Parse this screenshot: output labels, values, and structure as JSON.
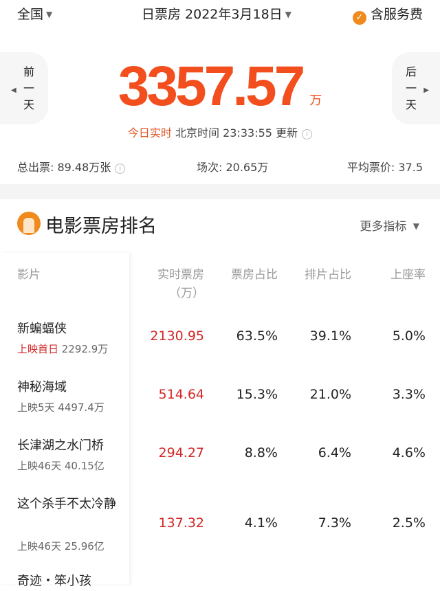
{
  "header": {
    "region": "全国",
    "date_label": "日票房 2022年3月18日",
    "service_fee": "含服务费"
  },
  "summary": {
    "prev_day": [
      "前",
      "一",
      "天"
    ],
    "next_day": [
      "后",
      "一",
      "天"
    ],
    "box_office": "3357.57",
    "unit": "万",
    "realtime": "今日实时",
    "update_time": "北京时间 23:33:55 更新",
    "tickets": "总出票: 89.48万张",
    "shows": "场次: 20.65万",
    "avg_price": "平均票价: 37.5"
  },
  "ranking": {
    "title": "电影票房排名",
    "more": "更多指标",
    "columns": {
      "film": "影片",
      "realtime": "实时票房",
      "realtime_unit": "（万）",
      "bo_share": "票房占比",
      "show_share": "排片占比",
      "occupancy": "上座率"
    },
    "rows": [
      {
        "name": "新蝙蝠侠",
        "release_tag": "上映首日",
        "total": "2292.9万",
        "bo": "2130.95",
        "bo_share": "63.5%",
        "show_share": "39.1%",
        "occupancy": "5.0%"
      },
      {
        "name": "神秘海域",
        "release_tag": "",
        "total": "上映5天 4497.4万",
        "bo": "514.64",
        "bo_share": "15.3%",
        "show_share": "21.0%",
        "occupancy": "3.3%"
      },
      {
        "name": "长津湖之水门桥",
        "release_tag": "",
        "total": "上映46天 40.15亿",
        "bo": "294.27",
        "bo_share": "8.8%",
        "show_share": "6.4%",
        "occupancy": "4.6%"
      },
      {
        "name": "这个杀手不太冷静",
        "release_tag": "",
        "total": "上映46天 25.96亿",
        "bo": "137.32",
        "bo_share": "4.1%",
        "show_share": "7.3%",
        "occupancy": "2.5%"
      },
      {
        "name": "奇迹・笨小孩"
      }
    ]
  },
  "colors": {
    "accent": "#f24e1e",
    "red": "#d32626",
    "orange": "#f08a1c"
  }
}
